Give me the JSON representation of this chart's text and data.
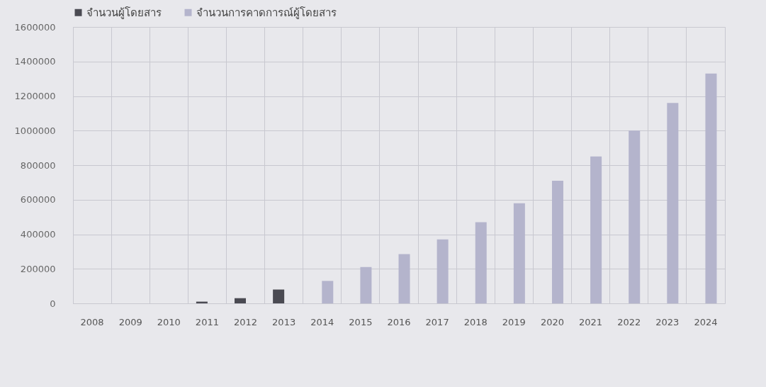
{
  "chart_data": {
    "type": "bar",
    "categories": [
      "2008",
      "2009",
      "2010",
      "2011",
      "2012",
      "2013",
      "2014",
      "2015",
      "2016",
      "2017",
      "2018",
      "2019",
      "2020",
      "2021",
      "2022",
      "2023",
      "2024"
    ],
    "series": [
      {
        "name": "จำนวนผู้โดยสาร",
        "color": "#4a4a52",
        "values": [
          null,
          null,
          null,
          10000,
          30000,
          80000,
          null,
          null,
          null,
          null,
          null,
          null,
          null,
          null,
          null,
          null,
          null
        ]
      },
      {
        "name": "จำนวนการคาดการณ์ผู้โดยสาร",
        "color": "#b4b4cc",
        "values": [
          null,
          null,
          null,
          null,
          null,
          null,
          130000,
          210000,
          285000,
          370000,
          470000,
          580000,
          710000,
          850000,
          1000000,
          1160000,
          1330000
        ]
      }
    ],
    "ylim": [
      0,
      1600000
    ],
    "yticks": [
      0,
      200000,
      400000,
      600000,
      800000,
      1000000,
      1200000,
      1400000,
      1600000
    ],
    "grid": true,
    "legend": "top"
  }
}
